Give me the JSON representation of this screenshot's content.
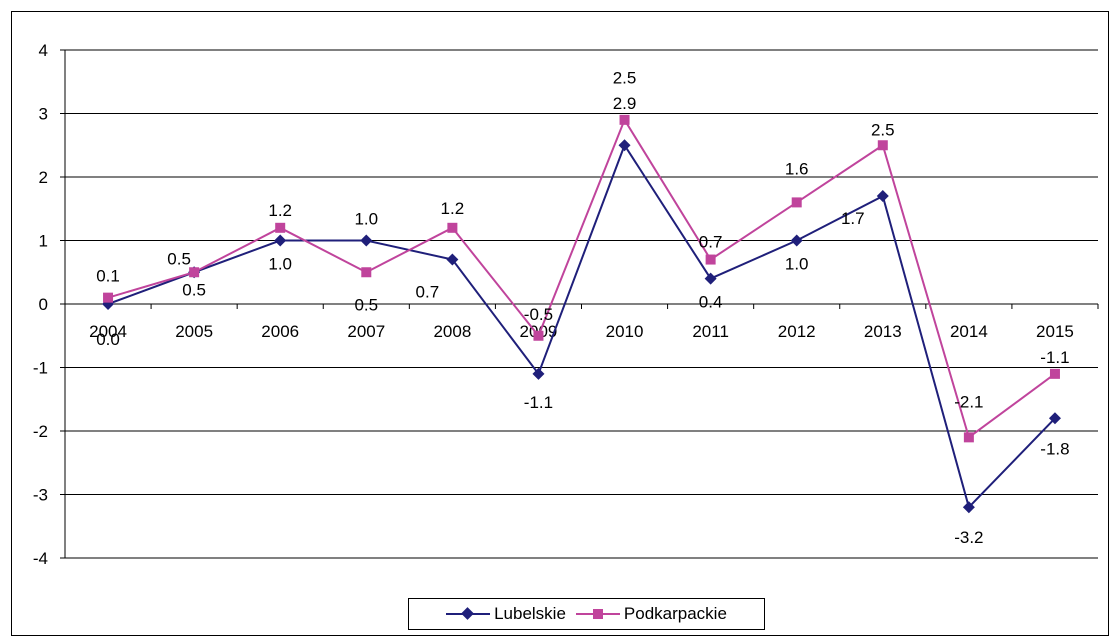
{
  "chart_data": {
    "type": "line",
    "title": "",
    "xlabel": "",
    "ylabel": "",
    "categories": [
      "2004",
      "2005",
      "2006",
      "2007",
      "2008",
      "2009",
      "2010",
      "2011",
      "2012",
      "2013",
      "2014",
      "2015"
    ],
    "ylim": [
      -4,
      4
    ],
    "yticks": [
      "-4",
      "-3",
      "-2",
      "-1",
      "0",
      "1",
      "2",
      "3",
      "4"
    ],
    "grid": true,
    "legend_position": "bottom",
    "series": [
      {
        "name": "Lubelskie",
        "color": "#1f1f7a",
        "marker": "diamond",
        "values": [
          0.0,
          0.5,
          1.0,
          1.0,
          0.7,
          -1.1,
          2.5,
          0.4,
          1.0,
          1.7,
          -3.2,
          -1.8
        ],
        "labels": [
          "0.0",
          "0.5",
          "1.0",
          "1.0",
          "0.7",
          "-1.1",
          "2.5",
          "0.4",
          "1.0",
          "1.7",
          "-3.2",
          "-1.8"
        ]
      },
      {
        "name": "Podkarpackie",
        "color": "#c0449c",
        "marker": "square",
        "values": [
          0.1,
          0.5,
          1.2,
          0.5,
          1.2,
          -0.5,
          2.9,
          0.7,
          1.6,
          2.5,
          -2.1,
          -1.1
        ],
        "labels": [
          "0.1",
          "0.5",
          "1.2",
          "0.5",
          "1.2",
          "-0.5",
          "2.9",
          "0.7",
          "1.6",
          "2.5",
          "-2.1",
          "-1.1"
        ]
      }
    ]
  }
}
